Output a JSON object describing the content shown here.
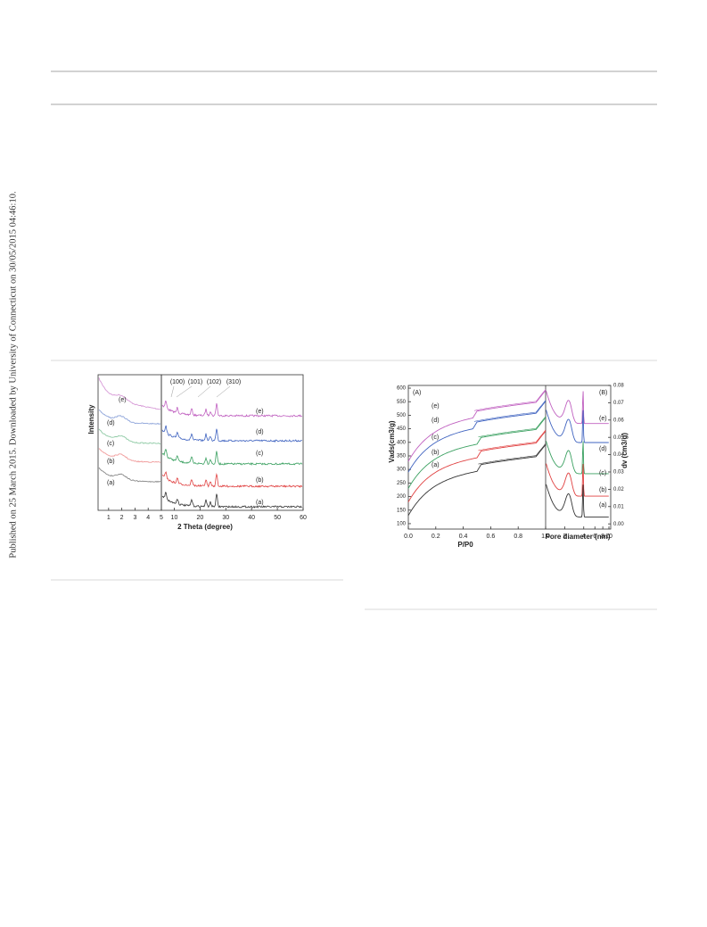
{
  "side_note": "Published on 25 March 2015. Downloaded by University of Connecticut on 30/05/2015 04:46:10.",
  "figure1": {
    "ylabel": "Intensity",
    "xlabel": "2 Theta (degree)",
    "left_xlim": [
      0.2,
      5
    ],
    "left_xticks": [
      1,
      2,
      3,
      4,
      5
    ],
    "right_xlim": [
      5,
      60
    ],
    "right_xticks": [
      10,
      20,
      30,
      40,
      50,
      60
    ],
    "peaks": [
      "(100)",
      "(101)",
      "(102)",
      "(310)"
    ],
    "left_labels": [
      "(e)",
      "(d)",
      "(c)",
      "(b)",
      "(a)"
    ],
    "right_labels": [
      "(e)",
      "(d)",
      "(c)",
      "(b)",
      "(a)"
    ]
  },
  "figure2": {
    "panel_a": "(A)",
    "panel_b": "(B)",
    "ylabel": "Vads(cm3/g)",
    "xlabel": "P/P0",
    "y2label": "dv (cm3/g)",
    "x2label": "Pore diameter (nm)",
    "ylim": [
      80,
      610
    ],
    "yticks": [
      100,
      150,
      200,
      250,
      300,
      350,
      400,
      450,
      500,
      550,
      600
    ],
    "xlim": [
      0,
      1
    ],
    "xticks": [
      {
        "value": 0,
        "label": "0.0"
      },
      0.2,
      0.4,
      0.6,
      0.8
    ],
    "x2lim": [
      1,
      10
    ],
    "x2ticks": [
      {
        "value": 1,
        "label": "1.0"
      },
      2,
      4,
      6,
      8,
      10
    ],
    "y2lim": [
      -0.003,
      0.08
    ],
    "y2ticks": [
      {
        "value": 0,
        "label": "0.00"
      },
      0.01,
      0.02,
      0.03,
      0.04,
      0.05,
      0.06,
      0.07,
      0.08
    ],
    "left_labels": [
      "(e)",
      "(d)",
      "(c)",
      "(b)",
      "(a)"
    ],
    "right_labels": [
      "(e)",
      "(d)",
      "(c)",
      "(b)",
      "(a)"
    ]
  }
}
